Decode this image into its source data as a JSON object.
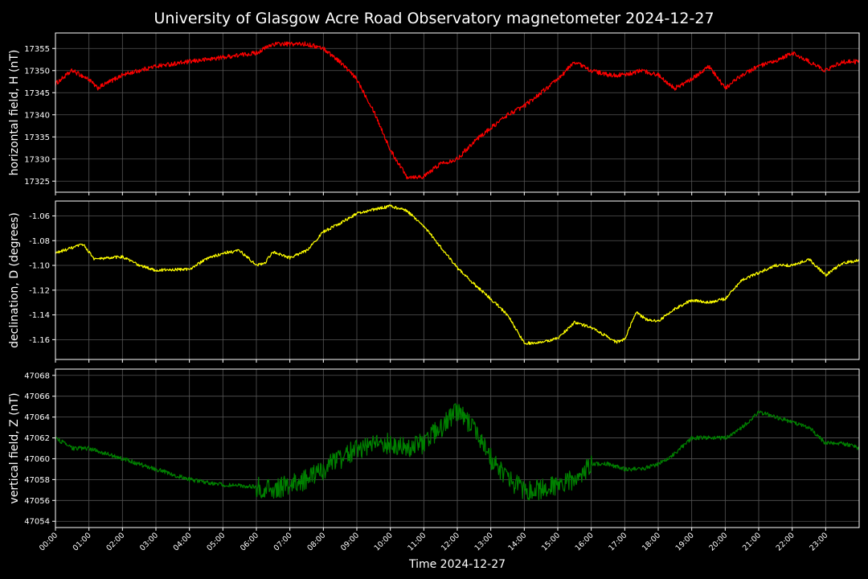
{
  "chart_data": {
    "type": "line",
    "title": "University of Glasgow Acre Road Observatory magnetometer 2024-12-27",
    "xlabel": "Time 2024-12-27",
    "x_ticks": [
      "00:00",
      "01:00",
      "02:00",
      "03:00",
      "04:00",
      "05:00",
      "06:00",
      "07:00",
      "08:00",
      "09:00",
      "10:00",
      "11:00",
      "12:00",
      "13:00",
      "14:00",
      "15:00",
      "16:00",
      "17:00",
      "18:00",
      "19:00",
      "20:00",
      "21:00",
      "22:00",
      "23:00"
    ],
    "xlim": [
      "00:00",
      "24:00"
    ],
    "grid": true,
    "panels": [
      {
        "ylabel": "horizontal field, H (nT)",
        "color": "#ff0000",
        "ylim": [
          17322.5,
          17358.5
        ],
        "yticks": [
          "17325",
          "17330",
          "17335",
          "17340",
          "17345",
          "17350",
          "17355"
        ],
        "ytick_values": [
          17325,
          17330,
          17335,
          17340,
          17345,
          17350,
          17355
        ],
        "noise": 0.5,
        "x": [
          "00:00",
          "00:30",
          "00:45",
          "01:00",
          "01:15",
          "01:30",
          "02:00",
          "02:30",
          "03:00",
          "04:00",
          "05:00",
          "06:00",
          "06:30",
          "07:00",
          "07:30",
          "08:00",
          "08:30",
          "09:00",
          "09:30",
          "10:00",
          "10:30",
          "11:00",
          "11:30",
          "12:00",
          "12:30",
          "13:00",
          "13:30",
          "14:00",
          "14:30",
          "15:00",
          "15:30",
          "15:45",
          "16:00",
          "16:30",
          "17:00",
          "17:30",
          "18:00",
          "18:30",
          "19:00",
          "19:30",
          "20:00",
          "20:30",
          "21:00",
          "21:30",
          "22:00",
          "22:30",
          "23:00",
          "23:30",
          "24:00"
        ],
        "values": [
          17347,
          17350,
          17349,
          17348,
          17346,
          17347,
          17349,
          17350,
          17351,
          17352,
          17353,
          17354,
          17356,
          17356,
          17356,
          17355,
          17352,
          17348,
          17341,
          17332,
          17326,
          17326,
          17329,
          17330,
          17334,
          17337,
          17340,
          17342,
          17345,
          17348,
          17352,
          17351,
          17350,
          17349,
          17349,
          17350,
          17349,
          17346,
          17348,
          17351,
          17346,
          17349,
          17351,
          17352,
          17354,
          17352,
          17350,
          17352,
          17352
        ]
      },
      {
        "ylabel": "declination, D (degrees)",
        "color": "#ffff00",
        "ylim": [
          -1.176,
          -1.048
        ],
        "yticks": [
          "-1.16",
          "-1.14",
          "-1.12",
          "-1.10",
          "-1.08",
          "-1.06"
        ],
        "ytick_values": [
          -1.16,
          -1.14,
          -1.12,
          -1.1,
          -1.08,
          -1.06
        ],
        "noise": 0.0012,
        "x": [
          "00:00",
          "00:50",
          "01:10",
          "02:00",
          "02:30",
          "03:00",
          "04:00",
          "04:30",
          "05:00",
          "05:30",
          "06:00",
          "06:15",
          "06:30",
          "07:00",
          "07:30",
          "08:00",
          "08:30",
          "09:00",
          "10:00",
          "10:30",
          "11:00",
          "11:30",
          "12:00",
          "12:30",
          "13:00",
          "13:30",
          "14:00",
          "14:30",
          "15:00",
          "15:30",
          "16:00",
          "16:30",
          "16:45",
          "17:00",
          "17:20",
          "17:40",
          "18:00",
          "18:30",
          "19:00",
          "19:30",
          "20:00",
          "20:30",
          "21:00",
          "21:30",
          "22:00",
          "22:30",
          "23:00",
          "23:30",
          "24:00"
        ],
        "values": [
          -1.09,
          -1.083,
          -1.095,
          -1.093,
          -1.1,
          -1.104,
          -1.103,
          -1.095,
          -1.09,
          -1.088,
          -1.1,
          -1.098,
          -1.089,
          -1.094,
          -1.088,
          -1.073,
          -1.066,
          -1.058,
          -1.052,
          -1.056,
          -1.068,
          -1.085,
          -1.102,
          -1.115,
          -1.127,
          -1.14,
          -1.163,
          -1.162,
          -1.159,
          -1.146,
          -1.15,
          -1.158,
          -1.162,
          -1.16,
          -1.138,
          -1.144,
          -1.145,
          -1.135,
          -1.128,
          -1.13,
          -1.127,
          -1.112,
          -1.106,
          -1.1,
          -1.1,
          -1.095,
          -1.108,
          -1.098,
          -1.096
        ]
      },
      {
        "ylabel": "vertical field, Z (nT)",
        "color": "#008000",
        "ylim": [
          47053.4,
          47068.6
        ],
        "yticks": [
          "47054",
          "47056",
          "47058",
          "47060",
          "47062",
          "47064",
          "47066",
          "47068"
        ],
        "ytick_values": [
          47054,
          47056,
          47058,
          47060,
          47062,
          47064,
          47066,
          47068
        ],
        "noise": 0.2,
        "noise_burst": {
          "from": "06:00",
          "to": "16:00",
          "amplitude": 1.0
        },
        "x": [
          "00:00",
          "00:30",
          "01:00",
          "01:30",
          "02:00",
          "02:30",
          "03:00",
          "04:00",
          "05:00",
          "06:00",
          "06:30",
          "07:00",
          "07:30",
          "08:00",
          "08:30",
          "09:00",
          "10:00",
          "10:30",
          "11:00",
          "11:30",
          "12:00",
          "12:30",
          "13:00",
          "13:30",
          "14:00",
          "14:30",
          "15:00",
          "15:30",
          "16:00",
          "16:30",
          "17:00",
          "17:30",
          "18:00",
          "18:30",
          "19:00",
          "19:30",
          "20:00",
          "20:30",
          "21:00",
          "21:30",
          "22:00",
          "22:30",
          "23:00",
          "23:30",
          "24:00"
        ],
        "values": [
          47062,
          47061,
          47061,
          47060.5,
          47060,
          47059.5,
          47059,
          47058,
          47057.5,
          47057.3,
          47057,
          47057.5,
          47058,
          47059,
          47060,
          47061,
          47061.5,
          47061,
          47061.5,
          47063,
          47064.5,
          47063,
          47060,
          47058,
          47057,
          47057,
          47057.5,
          47058,
          47059.5,
          47059.5,
          47059,
          47059,
          47059.5,
          47060.5,
          47062,
          47062,
          47062,
          47063,
          47064.5,
          47064,
          47063.5,
          47063,
          47061.5,
          47061.5,
          47061
        ]
      }
    ]
  }
}
